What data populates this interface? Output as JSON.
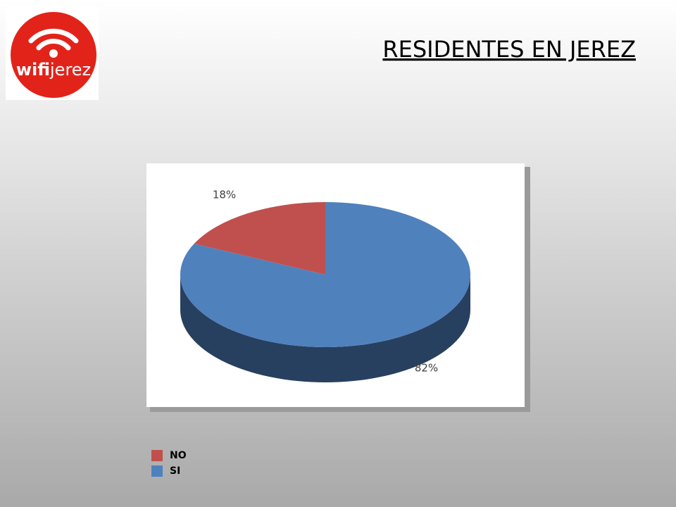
{
  "logo": {
    "wifi": "wifi",
    "jerez": "jerez"
  },
  "chart_data": {
    "type": "pie",
    "title": "RESIDENTES EN JEREZ",
    "categories": [
      "NO",
      "SI"
    ],
    "values": [
      18,
      82
    ],
    "value_labels": [
      "18%",
      "82%"
    ],
    "colors": [
      "#c0504d",
      "#4f81bd"
    ],
    "side_colors": [
      "#7a2f2d",
      "#27405f"
    ],
    "legend": "bottom-left"
  }
}
